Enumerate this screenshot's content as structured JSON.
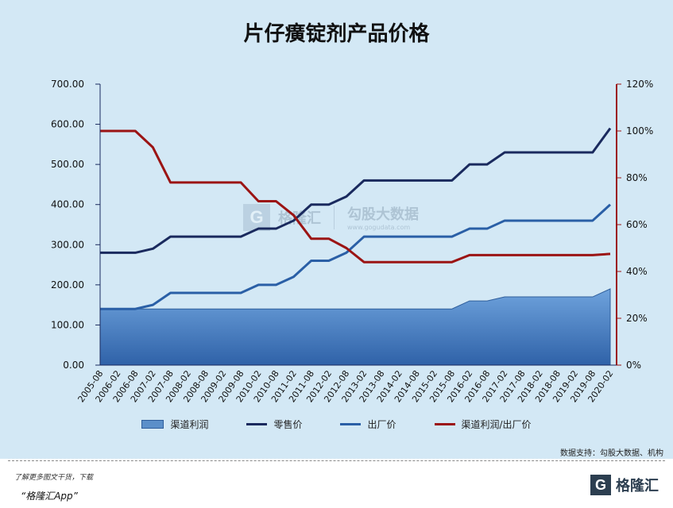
{
  "title": "片仔癀锭剂产品价格",
  "source": "数据支持：勾股大数据、机构",
  "footer": {
    "line1": "了解更多图文干货，下载",
    "line2": "“格隆汇App”",
    "logo_text": "格隆汇",
    "logo_glyph": "G"
  },
  "watermark": {
    "brand": "格隆汇",
    "site": "勾股大数据",
    "site_url": "www.gogudata.com",
    "logo_glyph": "G"
  },
  "colors": {
    "area_fill": "#5b8fc9",
    "retail": "#1a2a5e",
    "factory": "#2a5fa6",
    "ratio": "#9b1414"
  },
  "chart_data": {
    "type": "line",
    "categories": [
      "2005-08",
      "2006-02",
      "2006-08",
      "2007-02",
      "2007-08",
      "2008-02",
      "2008-08",
      "2009-02",
      "2009-08",
      "2010-02",
      "2010-08",
      "2011-02",
      "2011-08",
      "2012-02",
      "2012-08",
      "2013-02",
      "2013-08",
      "2014-02",
      "2014-08",
      "2015-02",
      "2015-08",
      "2016-02",
      "2016-08",
      "2017-02",
      "2017-08",
      "2018-02",
      "2018-08",
      "2019-02",
      "2019-08",
      "2020-02"
    ],
    "y_left": {
      "range": [
        0,
        700
      ],
      "ticks": [
        "0.00",
        "100.00",
        "200.00",
        "300.00",
        "400.00",
        "500.00",
        "600.00",
        "700.00"
      ]
    },
    "y_right": {
      "range": [
        0,
        1.2
      ],
      "ticks": [
        "0%",
        "20%",
        "40%",
        "60%",
        "80%",
        "100%",
        "120%"
      ]
    },
    "series": [
      {
        "name": "渠道利润",
        "kind": "area",
        "axis": "left",
        "values": [
          140,
          140,
          140,
          140,
          140,
          140,
          140,
          140,
          140,
          140,
          140,
          140,
          140,
          140,
          140,
          140,
          140,
          140,
          140,
          140,
          140,
          160,
          160,
          170,
          170,
          170,
          170,
          170,
          170,
          190
        ]
      },
      {
        "name": "零售价",
        "kind": "line",
        "axis": "left",
        "values": [
          280,
          280,
          280,
          290,
          320,
          320,
          320,
          320,
          320,
          340,
          340,
          360,
          400,
          400,
          420,
          460,
          460,
          460,
          460,
          460,
          460,
          500,
          500,
          530,
          530,
          530,
          530,
          530,
          530,
          590
        ]
      },
      {
        "name": "出厂价",
        "kind": "line",
        "axis": "left",
        "values": [
          140,
          140,
          140,
          150,
          180,
          180,
          180,
          180,
          180,
          200,
          200,
          220,
          260,
          260,
          280,
          320,
          320,
          320,
          320,
          320,
          320,
          340,
          340,
          360,
          360,
          360,
          360,
          360,
          360,
          400
        ]
      },
      {
        "name": "渠道利润/出厂价",
        "kind": "line",
        "axis": "right",
        "values": [
          1.0,
          1.0,
          1.0,
          0.93,
          0.78,
          0.78,
          0.78,
          0.78,
          0.78,
          0.7,
          0.7,
          0.64,
          0.54,
          0.54,
          0.5,
          0.44,
          0.44,
          0.44,
          0.44,
          0.44,
          0.44,
          0.47,
          0.47,
          0.47,
          0.47,
          0.47,
          0.47,
          0.47,
          0.47,
          0.475
        ]
      }
    ]
  }
}
